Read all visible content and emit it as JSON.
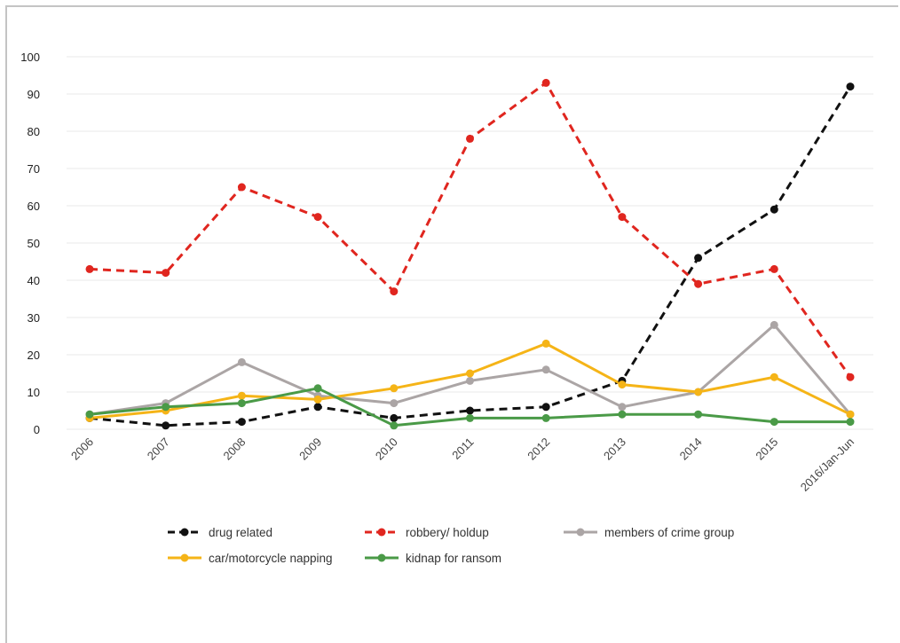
{
  "chart_data": {
    "type": "line",
    "categories": [
      "2006",
      "2007",
      "2008",
      "2009",
      "2010",
      "2011",
      "2012",
      "2013",
      "2014",
      "2015",
      "2016/Jan-Jun"
    ],
    "ylim": [
      0,
      100
    ],
    "yticks": [
      0,
      10,
      20,
      30,
      40,
      50,
      60,
      70,
      80,
      90,
      100
    ],
    "grid": "horizontal",
    "legend_position": "bottom",
    "series": [
      {
        "key": "drug",
        "name": "drug related",
        "color": "#111111",
        "dashed": true,
        "values": [
          3,
          1,
          2,
          6,
          3,
          5,
          6,
          13,
          46,
          59,
          92
        ]
      },
      {
        "key": "robbery",
        "name": "robbery/ holdup",
        "color": "#e0261f",
        "dashed": true,
        "values": [
          43,
          42,
          65,
          57,
          37,
          78,
          93,
          57,
          39,
          43,
          14
        ]
      },
      {
        "key": "crime",
        "name": "members of crime group",
        "color": "#aba5a5",
        "dashed": false,
        "values": [
          4,
          7,
          18,
          9,
          7,
          13,
          16,
          6,
          10,
          28,
          4
        ]
      },
      {
        "key": "car",
        "name": "car/motorcycle napping",
        "color": "#f5b417",
        "dashed": false,
        "values": [
          3,
          5,
          9,
          8,
          11,
          15,
          23,
          12,
          10,
          14,
          4
        ]
      },
      {
        "key": "kidnap",
        "name": "kidnap for ransom",
        "color": "#4a9a47",
        "dashed": false,
        "values": [
          4,
          6,
          7,
          11,
          1,
          3,
          3,
          4,
          4,
          2,
          2
        ]
      }
    ]
  }
}
